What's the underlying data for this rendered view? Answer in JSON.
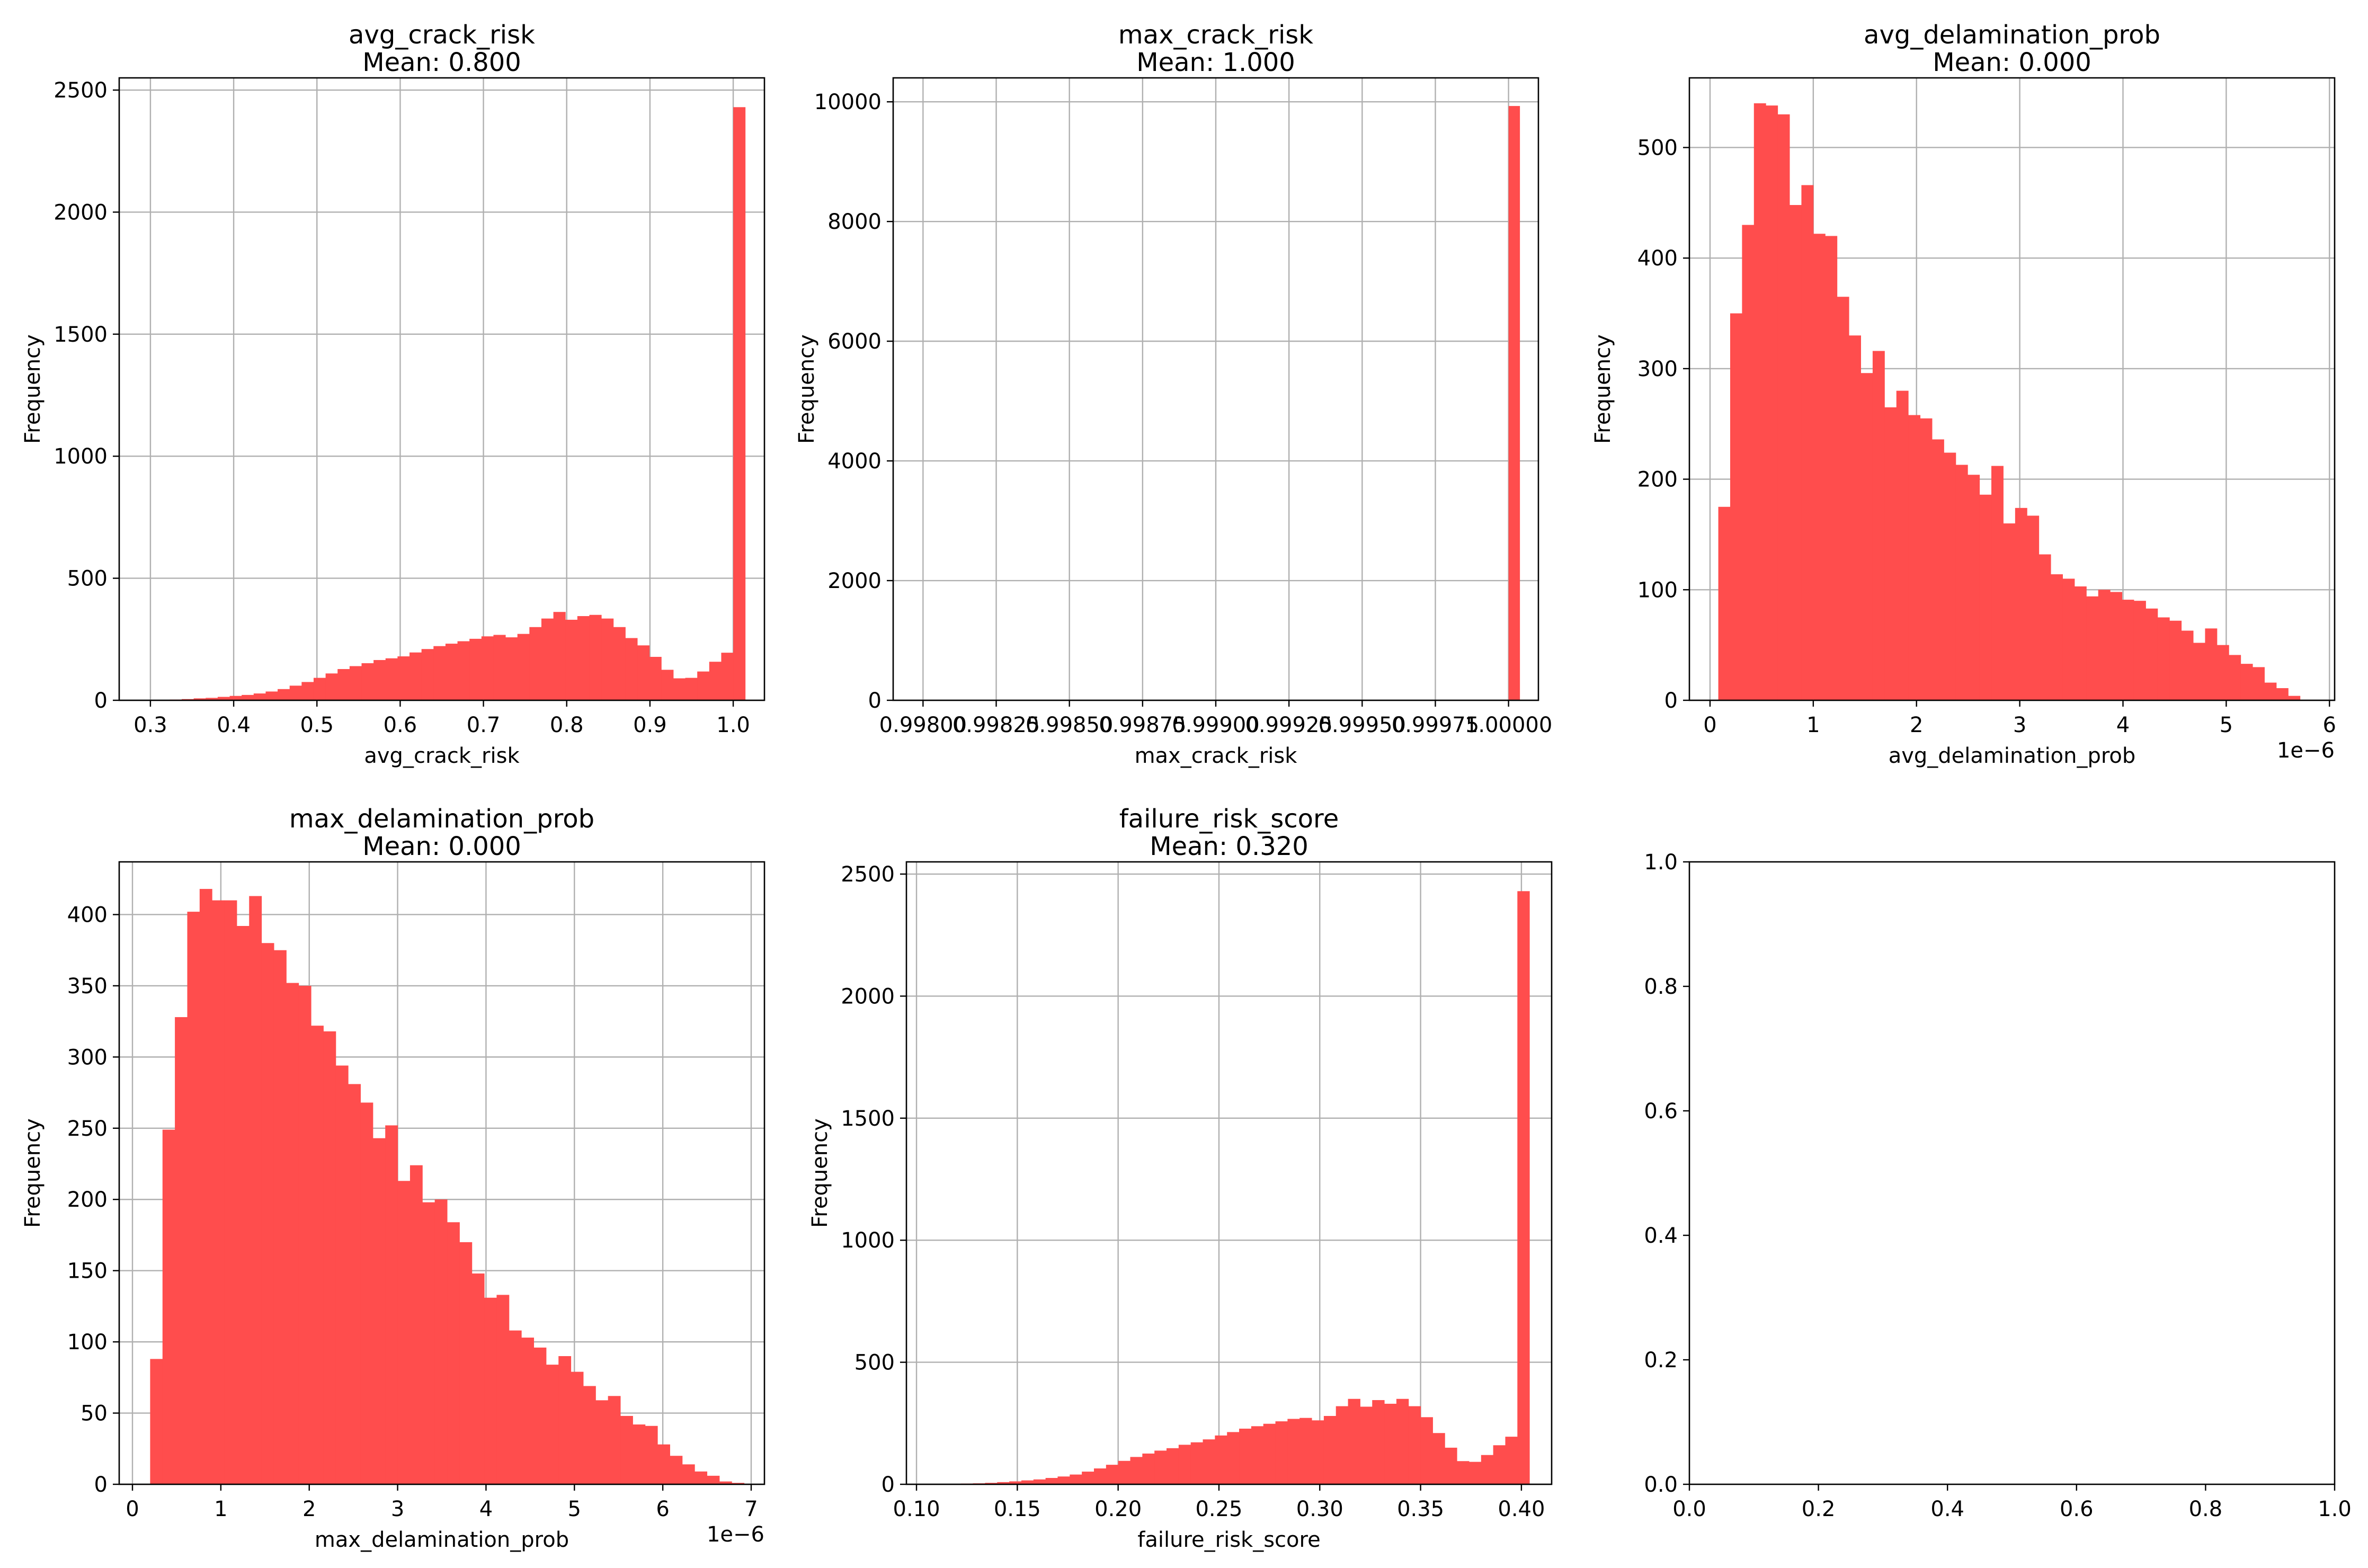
{
  "chart_data": [
    {
      "type": "bar",
      "title": "avg_crack_risk",
      "subtitle": "Mean: 0.800",
      "xlabel": "avg_crack_risk",
      "ylabel": "Frequency",
      "xlim": [
        0.2625,
        1.0375
      ],
      "ylim": [
        0,
        2550
      ],
      "xticks": [
        0.3,
        0.4,
        0.5,
        0.6,
        0.7,
        0.8,
        0.9,
        1.0
      ],
      "xtick_labels": [
        "0.3",
        "0.4",
        "0.5",
        "0.6",
        "0.7",
        "0.8",
        "0.9",
        "1.0"
      ],
      "yticks": [
        0,
        500,
        1000,
        1500,
        2000,
        2500
      ],
      "ytick_labels": [
        "0",
        "500",
        "1000",
        "1500",
        "2000",
        "2500"
      ],
      "offset_label": "",
      "grid": true,
      "bins": [
        0.28,
        0.2944,
        0.3088,
        0.3232,
        0.3376,
        0.352,
        0.3664,
        0.3808,
        0.3952,
        0.4096,
        0.424,
        0.4384,
        0.4528,
        0.4672,
        0.4816,
        0.496,
        0.5104,
        0.5248,
        0.5392,
        0.5536,
        0.568,
        0.5824,
        0.5968,
        0.6112,
        0.6256,
        0.64,
        0.6544,
        0.6688,
        0.6832,
        0.6976,
        0.712,
        0.7264,
        0.7408,
        0.7552,
        0.7696,
        0.784,
        0.7984,
        0.8128,
        0.8272,
        0.8416,
        0.856,
        0.8704,
        0.8848,
        0.8992,
        0.9136,
        0.928,
        0.9424,
        0.9568,
        0.9712,
        0.9856,
        1.0
      ],
      "values": [
        1,
        1,
        2,
        3,
        5,
        8,
        10,
        14,
        18,
        22,
        28,
        36,
        46,
        60,
        75,
        92,
        110,
        128,
        140,
        152,
        165,
        172,
        180,
        196,
        210,
        222,
        232,
        242,
        252,
        262,
        268,
        258,
        272,
        300,
        335,
        362,
        330,
        345,
        350,
        335,
        300,
        255,
        225,
        178,
        125,
        90,
        92,
        118,
        158,
        195,
        2430
      ],
      "color": "#ff4d4d"
    },
    {
      "type": "bar",
      "title": "max_crack_risk",
      "subtitle": "Mean: 1.000",
      "xlabel": "max_crack_risk",
      "ylabel": "Frequency",
      "xlim": [
        0.997898,
        1.000102
      ],
      "ylim": [
        0,
        10400
      ],
      "xticks": [
        0.998,
        0.99825,
        0.9985,
        0.99875,
        0.999,
        0.99925,
        0.9995,
        0.99975,
        1.0
      ],
      "xtick_labels": [
        "0.99800",
        "0.99825",
        "0.99850",
        "0.99875",
        "0.99900",
        "0.99925",
        "0.99950",
        "0.99975",
        "1.00000"
      ],
      "yticks": [
        0,
        2000,
        4000,
        6000,
        8000,
        10000
      ],
      "ytick_labels": [
        "0",
        "2000",
        "4000",
        "6000",
        "8000",
        "10000"
      ],
      "offset_label": "",
      "grid": true,
      "bins": [
        0.9981,
        0.998138,
        0.998176,
        0.998214,
        0.998252,
        0.99829,
        0.998328,
        0.998366,
        0.998404,
        0.998442,
        0.99848,
        0.998518,
        0.998556,
        0.998594,
        0.998632,
        0.99867,
        0.998708,
        0.998746,
        0.998784,
        0.998822,
        0.99886,
        0.998898,
        0.998936,
        0.998974,
        0.999012,
        0.99905,
        0.999088,
        0.999126,
        0.999164,
        0.999202,
        0.99924,
        0.999278,
        0.999316,
        0.999354,
        0.999392,
        0.99943,
        0.999468,
        0.999506,
        0.999544,
        0.999582,
        0.99962,
        0.999658,
        0.999696,
        0.999734,
        0.999772,
        0.99981,
        0.999848,
        0.999886,
        0.999924,
        0.999962,
        1.0
      ],
      "values": [
        0,
        0,
        0,
        0,
        0,
        0,
        0,
        0,
        0,
        0,
        0,
        0,
        0,
        0,
        0,
        0,
        0,
        0,
        0,
        0,
        0,
        0,
        0,
        0,
        0,
        0,
        0,
        0,
        0,
        0,
        0,
        0,
        0,
        0,
        0,
        0,
        0,
        0,
        0,
        0,
        0,
        0,
        0,
        0,
        0,
        0,
        0,
        0,
        0,
        0,
        9930
      ],
      "color": "#ff4d4d"
    },
    {
      "type": "bar",
      "title": "avg_delamination_prob",
      "subtitle": "Mean: 0.000",
      "xlabel": "avg_delamination_prob",
      "ylabel": "Frequency",
      "xlim": [
        -0.2,
        6.05
      ],
      "ylim": [
        0,
        563
      ],
      "xticks": [
        0,
        1,
        2,
        3,
        4,
        5,
        6
      ],
      "xtick_labels": [
        "0",
        "1",
        "2",
        "3",
        "4",
        "5",
        "6"
      ],
      "yticks": [
        0,
        100,
        200,
        300,
        400,
        500
      ],
      "ytick_labels": [
        "0",
        "100",
        "200",
        "300",
        "400",
        "500"
      ],
      "offset_label": "1e−6",
      "grid": true,
      "bins": [
        0.08,
        0.195,
        0.31,
        0.425,
        0.54,
        0.655,
        0.77,
        0.885,
        1.0,
        1.115,
        1.23,
        1.345,
        1.46,
        1.575,
        1.69,
        1.805,
        1.92,
        2.035,
        2.15,
        2.265,
        2.38,
        2.495,
        2.61,
        2.725,
        2.84,
        2.955,
        3.07,
        3.185,
        3.3,
        3.415,
        3.53,
        3.645,
        3.76,
        3.875,
        3.99,
        4.105,
        4.22,
        4.335,
        4.45,
        4.565,
        4.68,
        4.795,
        4.91,
        5.025,
        5.14,
        5.255,
        5.37,
        5.485,
        5.6
      ],
      "values": [
        175,
        350,
        430,
        540,
        538,
        530,
        448,
        466,
        422,
        420,
        365,
        330,
        296,
        316,
        265,
        280,
        258,
        255,
        236,
        224,
        213,
        204,
        186,
        212,
        160,
        174,
        167,
        132,
        114,
        110,
        103,
        94,
        100,
        98,
        91,
        90,
        83,
        75,
        72,
        63,
        52,
        65,
        50,
        41,
        33,
        30,
        16,
        11,
        4
      ],
      "color": "#ff4d4d"
    },
    {
      "type": "bar",
      "title": "max_delamination_prob",
      "subtitle": "Mean: 0.000",
      "xlabel": "max_delamination_prob",
      "ylabel": "Frequency",
      "xlim": [
        -0.15,
        7.15
      ],
      "ylim": [
        0,
        437
      ],
      "xticks": [
        0,
        1,
        2,
        3,
        4,
        5,
        6,
        7
      ],
      "xtick_labels": [
        "0",
        "1",
        "2",
        "3",
        "4",
        "5",
        "6",
        "7"
      ],
      "yticks": [
        0,
        50,
        100,
        150,
        200,
        250,
        300,
        350,
        400
      ],
      "ytick_labels": [
        "0",
        "50",
        "100",
        "150",
        "200",
        "250",
        "300",
        "350",
        "400"
      ],
      "offset_label": "1e−6",
      "grid": true,
      "bins": [
        0.2,
        0.34,
        0.48,
        0.62,
        0.76,
        0.9,
        1.04,
        1.18,
        1.32,
        1.46,
        1.6,
        1.74,
        1.88,
        2.02,
        2.16,
        2.3,
        2.44,
        2.58,
        2.72,
        2.86,
        3.0,
        3.14,
        3.28,
        3.42,
        3.56,
        3.7,
        3.84,
        3.98,
        4.12,
        4.26,
        4.4,
        4.54,
        4.68,
        4.82,
        4.96,
        5.1,
        5.24,
        5.38,
        5.52,
        5.66,
        5.8,
        5.94,
        6.08,
        6.22,
        6.36,
        6.5,
        6.64,
        6.78
      ],
      "values": [
        88,
        249,
        328,
        402,
        418,
        410,
        410,
        392,
        413,
        380,
        375,
        352,
        350,
        322,
        318,
        294,
        281,
        268,
        243,
        252,
        213,
        224,
        198,
        200,
        184,
        170,
        148,
        131,
        133,
        108,
        103,
        96,
        84,
        90,
        79,
        69,
        59,
        62,
        48,
        42,
        41,
        28,
        20,
        14,
        9,
        6,
        2,
        1
      ],
      "color": "#ff4d4d"
    },
    {
      "type": "bar",
      "title": "failure_risk_score",
      "subtitle": "Mean: 0.320",
      "xlabel": "failure_risk_score",
      "ylabel": "Frequency",
      "xlim": [
        0.095,
        0.415
      ],
      "ylim": [
        0,
        2550
      ],
      "xticks": [
        0.1,
        0.15,
        0.2,
        0.25,
        0.3,
        0.35,
        0.4
      ],
      "xtick_labels": [
        "0.10",
        "0.15",
        "0.20",
        "0.25",
        "0.30",
        "0.35",
        "0.40"
      ],
      "yticks": [
        0,
        500,
        1000,
        1500,
        2000,
        2500
      ],
      "ytick_labels": [
        "0",
        "500",
        "1000",
        "1500",
        "2000",
        "2500"
      ],
      "offset_label": "",
      "grid": true,
      "bins": [
        0.11,
        0.116,
        0.122,
        0.128,
        0.134,
        0.14,
        0.146,
        0.152,
        0.158,
        0.164,
        0.17,
        0.176,
        0.182,
        0.188,
        0.194,
        0.2,
        0.206,
        0.212,
        0.218,
        0.224,
        0.23,
        0.236,
        0.242,
        0.248,
        0.254,
        0.26,
        0.266,
        0.272,
        0.278,
        0.284,
        0.29,
        0.296,
        0.302,
        0.308,
        0.314,
        0.32,
        0.326,
        0.332,
        0.338,
        0.344,
        0.35,
        0.356,
        0.362,
        0.368,
        0.374,
        0.38,
        0.386,
        0.392,
        0.398
      ],
      "values": [
        1,
        2,
        3,
        4,
        6,
        9,
        12,
        16,
        20,
        26,
        32,
        40,
        52,
        65,
        80,
        96,
        112,
        126,
        138,
        148,
        162,
        172,
        184,
        200,
        214,
        228,
        238,
        248,
        258,
        268,
        272,
        262,
        280,
        320,
        350,
        318,
        345,
        330,
        350,
        320,
        275,
        210,
        150,
        95,
        92,
        120,
        160,
        195,
        2430
      ],
      "color": "#ff4d4d"
    },
    {
      "type": "empty",
      "title": "",
      "xlim": [
        0,
        1
      ],
      "ylim": [
        0,
        1
      ],
      "xticks": [
        0,
        0.2,
        0.4,
        0.6,
        0.8,
        1.0
      ],
      "xtick_labels": [
        "0.0",
        "0.2",
        "0.4",
        "0.6",
        "0.8",
        "1.0"
      ],
      "yticks": [
        0,
        0.2,
        0.4,
        0.6,
        0.8,
        1.0
      ],
      "ytick_labels": [
        "0.0",
        "0.2",
        "0.4",
        "0.6",
        "0.8",
        "1.0"
      ],
      "offset_label": "",
      "grid": false
    }
  ]
}
